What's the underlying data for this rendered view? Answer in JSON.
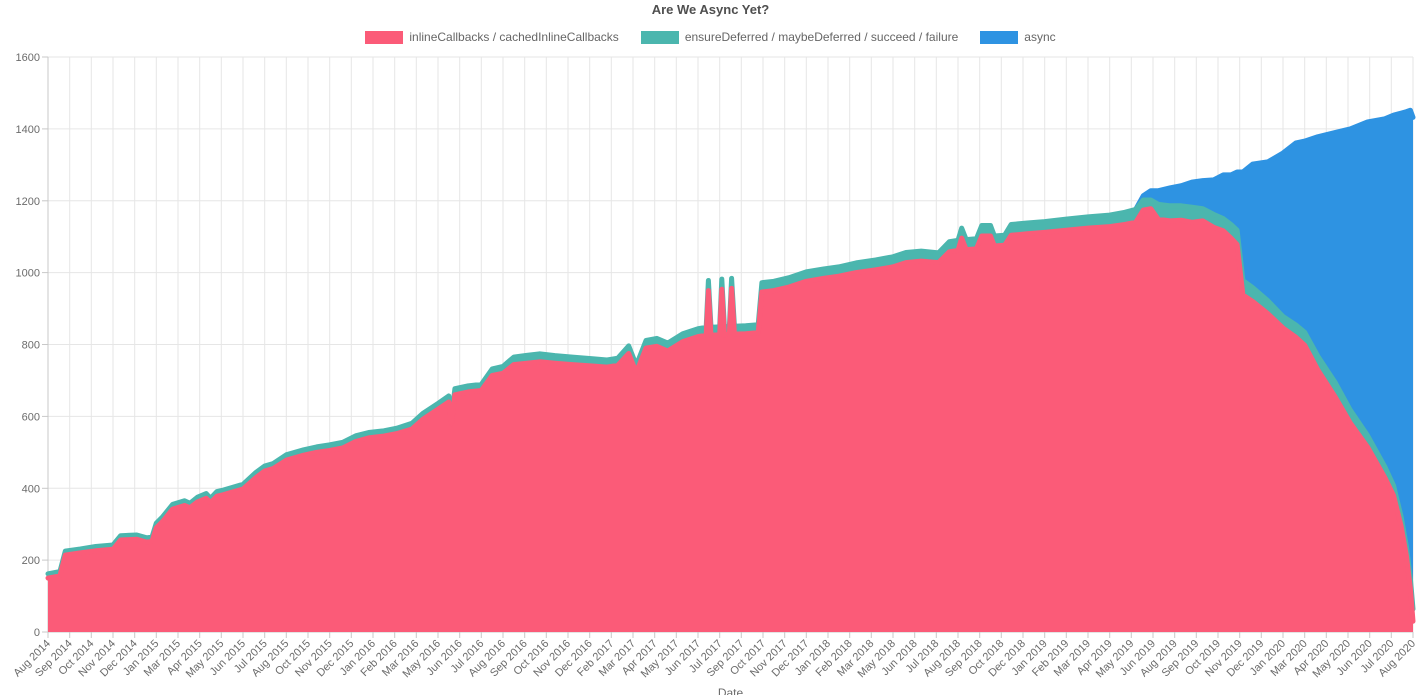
{
  "page_title": "Are We Async Yet?",
  "legend": {
    "items": [
      {
        "label": "inlineCallbacks / cachedInlineCallbacks",
        "color": "#fb5b78"
      },
      {
        "label": "ensureDeferred / maybeDeferred / succeed / failure",
        "color": "#4bb6ae"
      },
      {
        "label": "async",
        "color": "#2e93e2"
      }
    ]
  },
  "chart_data": {
    "type": "area",
    "stacked": true,
    "title": "Are We Async Yet?",
    "xlabel": "Date",
    "ylabel": "",
    "ylim": [
      0,
      1600
    ],
    "y_ticks": [
      0,
      200,
      400,
      600,
      800,
      1000,
      1200,
      1400,
      1600
    ],
    "grid": true,
    "legend_position": "top",
    "x_tick_labels": [
      "Aug 2014",
      "Sep 2014",
      "Oct 2014",
      "Nov 2014",
      "Dec 2014",
      "Jan 2015",
      "Mar 2015",
      "Apr 2015",
      "May 2015",
      "Jun 2015",
      "Jul 2015",
      "Aug 2015",
      "Oct 2015",
      "Nov 2015",
      "Dec 2015",
      "Jan 2016",
      "Feb 2016",
      "Mar 2016",
      "May 2016",
      "Jun 2016",
      "Jul 2016",
      "Aug 2016",
      "Sep 2016",
      "Oct 2016",
      "Nov 2016",
      "Dec 2016",
      "Feb 2017",
      "Mar 2017",
      "Apr 2017",
      "May 2017",
      "Jun 2017",
      "Jul 2017",
      "Sep 2017",
      "Oct 2017",
      "Nov 2017",
      "Dec 2017",
      "Jan 2018",
      "Feb 2018",
      "Mar 2018",
      "May 2018",
      "Jun 2018",
      "Jul 2018",
      "Aug 2018",
      "Sep 2018",
      "Oct 2018",
      "Dec 2018",
      "Jan 2019",
      "Feb 2019",
      "Mar 2019",
      "Apr 2019",
      "May 2019",
      "Jun 2019",
      "Aug 2019",
      "Sep 2019",
      "Oct 2019",
      "Nov 2019",
      "Dec 2019",
      "Jan 2020",
      "Mar 2020",
      "Apr 2020",
      "May 2020",
      "Jun 2020",
      "Jul 2020",
      "Aug 2020"
    ],
    "series": [
      {
        "name": "inlineCallbacks / cachedInlineCallbacks",
        "color": "#fb5b78",
        "column": 1
      },
      {
        "name": "ensureDeferred / maybeDeferred / succeed / failure",
        "color": "#4bb6ae",
        "column": 2
      },
      {
        "name": "async",
        "color": "#2e93e2",
        "column": 3
      }
    ],
    "points_format": [
      "x_fractional_index_into_x_tick_labels",
      "inlineCallbacks_count",
      "ensureDeferred_count",
      "async_count"
    ],
    "points": [
      [
        0,
        150,
        12,
        0
      ],
      [
        0.55,
        156,
        12,
        0
      ],
      [
        0.8,
        214,
        11,
        0
      ],
      [
        1.5,
        220,
        11,
        0
      ],
      [
        2.2,
        226,
        12,
        0
      ],
      [
        3,
        230,
        12,
        0
      ],
      [
        3.35,
        256,
        12,
        0
      ],
      [
        4.1,
        258,
        12,
        0
      ],
      [
        4.55,
        250,
        12,
        0
      ],
      [
        4.8,
        252,
        12,
        0
      ],
      [
        5,
        290,
        13,
        0
      ],
      [
        5.3,
        308,
        13,
        0
      ],
      [
        5.75,
        342,
        13,
        0
      ],
      [
        6.3,
        352,
        13,
        0
      ],
      [
        6.55,
        346,
        12,
        0
      ],
      [
        6.9,
        362,
        13,
        0
      ],
      [
        7.3,
        372,
        13,
        0
      ],
      [
        7.5,
        360,
        12,
        0
      ],
      [
        7.8,
        378,
        13,
        0
      ],
      [
        8.1,
        382,
        13,
        0
      ],
      [
        8.55,
        390,
        13,
        0
      ],
      [
        9,
        398,
        13,
        0
      ],
      [
        9.6,
        430,
        14,
        0
      ],
      [
        10,
        448,
        14,
        0
      ],
      [
        10.4,
        455,
        14,
        0
      ],
      [
        11,
        478,
        15,
        0
      ],
      [
        11.8,
        492,
        15,
        0
      ],
      [
        12.4,
        500,
        15,
        0
      ],
      [
        13,
        505,
        16,
        0
      ],
      [
        13.6,
        512,
        16,
        0
      ],
      [
        14.2,
        530,
        16,
        0
      ],
      [
        14.8,
        540,
        15,
        0
      ],
      [
        15.5,
        545,
        15,
        0
      ],
      [
        16.1,
        552,
        15,
        0
      ],
      [
        16.8,
        565,
        16,
        0
      ],
      [
        17.3,
        592,
        16,
        0
      ],
      [
        18,
        620,
        16,
        0
      ],
      [
        18.5,
        640,
        17,
        0
      ],
      [
        18.62,
        580,
        15,
        0
      ],
      [
        18.78,
        660,
        17,
        0
      ],
      [
        19.4,
        668,
        17,
        0
      ],
      [
        20,
        672,
        17,
        0
      ],
      [
        20.5,
        714,
        18,
        0
      ],
      [
        21,
        720,
        19,
        0
      ],
      [
        21.5,
        744,
        21,
        0
      ],
      [
        22.1,
        748,
        22,
        0
      ],
      [
        22.7,
        752,
        22,
        0
      ],
      [
        23.4,
        748,
        21,
        0
      ],
      [
        24.2,
        744,
        21,
        0
      ],
      [
        25.2,
        740,
        20,
        0
      ],
      [
        25.8,
        737,
        20,
        0
      ],
      [
        26.3,
        742,
        20,
        0
      ],
      [
        26.8,
        775,
        21,
        0
      ],
      [
        27.15,
        722,
        20,
        0
      ],
      [
        27.6,
        790,
        21,
        0
      ],
      [
        28.1,
        795,
        22,
        0
      ],
      [
        28.6,
        782,
        22,
        0
      ],
      [
        29.3,
        808,
        22,
        0
      ],
      [
        30,
        822,
        22,
        0
      ],
      [
        30.38,
        826,
        22,
        0
      ],
      [
        30.48,
        950,
        28,
        0
      ],
      [
        30.6,
        826,
        22,
        0
      ],
      [
        31,
        827,
        22,
        0
      ],
      [
        31.1,
        954,
        28,
        0
      ],
      [
        31.22,
        827,
        22,
        0
      ],
      [
        31.45,
        829,
        22,
        0
      ],
      [
        31.55,
        956,
        28,
        0
      ],
      [
        31.68,
        829,
        22,
        0
      ],
      [
        32.2,
        830,
        22,
        0
      ],
      [
        32.78,
        833,
        22,
        0
      ],
      [
        32.95,
        946,
        26,
        0
      ],
      [
        33.5,
        950,
        26,
        0
      ],
      [
        34.2,
        960,
        26,
        0
      ],
      [
        35,
        976,
        26,
        0
      ],
      [
        35.8,
        984,
        26,
        0
      ],
      [
        36.5,
        990,
        26,
        0
      ],
      [
        37.3,
        1000,
        27,
        0
      ],
      [
        38.2,
        1008,
        27,
        0
      ],
      [
        39,
        1016,
        28,
        0
      ],
      [
        39.6,
        1028,
        28,
        0
      ],
      [
        40.3,
        1032,
        28,
        0
      ],
      [
        41.1,
        1028,
        27,
        0
      ],
      [
        41.6,
        1058,
        28,
        0
      ],
      [
        42,
        1062,
        28,
        0
      ],
      [
        42.17,
        1096,
        28,
        0
      ],
      [
        42.38,
        1064,
        28,
        0
      ],
      [
        42.85,
        1066,
        28,
        0
      ],
      [
        43.1,
        1102,
        29,
        0
      ],
      [
        43.5,
        1102,
        29,
        0
      ],
      [
        43.68,
        1074,
        28,
        0
      ],
      [
        44.15,
        1076,
        28,
        0
      ],
      [
        44.45,
        1104,
        30,
        0
      ],
      [
        45.2,
        1108,
        30,
        0
      ],
      [
        46,
        1112,
        30,
        0
      ],
      [
        47,
        1118,
        31,
        0
      ],
      [
        48,
        1124,
        31,
        0
      ],
      [
        49,
        1128,
        32,
        0
      ],
      [
        49.7,
        1134,
        34,
        0
      ],
      [
        50.2,
        1140,
        36,
        0
      ],
      [
        50.55,
        1174,
        28,
        12
      ],
      [
        50.9,
        1178,
        24,
        26
      ],
      [
        51.25,
        1148,
        42,
        38
      ],
      [
        51.8,
        1144,
        42,
        50
      ],
      [
        52.3,
        1146,
        40,
        56
      ],
      [
        52.8,
        1140,
        42,
        70
      ],
      [
        53.3,
        1144,
        34,
        78
      ],
      [
        53.8,
        1126,
        36,
        96
      ],
      [
        54.25,
        1116,
        34,
        122
      ],
      [
        54.6,
        1096,
        38,
        138
      ],
      [
        54.88,
        1078,
        40,
        162
      ],
      [
        55.15,
        938,
        40,
        302
      ],
      [
        55.6,
        920,
        38,
        344
      ],
      [
        56.3,
        886,
        36,
        386
      ],
      [
        57,
        846,
        32,
        455
      ],
      [
        57.6,
        820,
        34,
        507
      ],
      [
        58,
        798,
        36,
        532
      ],
      [
        58.6,
        730,
        38,
        610
      ],
      [
        59.4,
        655,
        40,
        695
      ],
      [
        60.1,
        582,
        36,
        782
      ],
      [
        60.9,
        515,
        32,
        872
      ],
      [
        61.7,
        430,
        30,
        968
      ],
      [
        62.1,
        380,
        28,
        1030
      ],
      [
        62.45,
        295,
        26,
        1123
      ],
      [
        62.7,
        210,
        26,
        1212
      ],
      [
        62.88,
        120,
        28,
        1304
      ],
      [
        63,
        30,
        34,
        1368
      ]
    ]
  },
  "colors": {
    "grid": "#e6e6e6",
    "axis_line": "#c8c8c8",
    "tick_text": "#6b6b6b",
    "title_text": "#4f4f4f",
    "legend_text": "#666666",
    "background": "#ffffff"
  }
}
